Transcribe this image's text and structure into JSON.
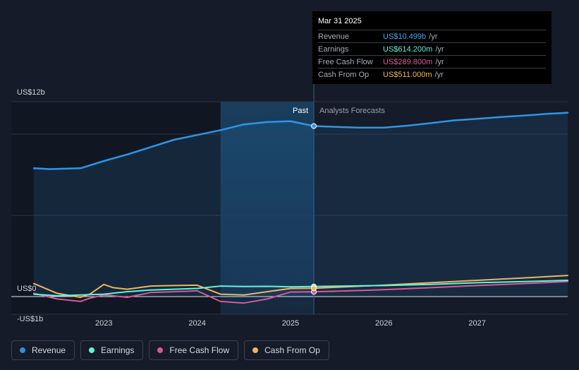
{
  "tooltip": {
    "date": "Mar 31 2025",
    "rows": [
      {
        "label": "Revenue",
        "value": "US$10.499b",
        "unit": "/yr",
        "color": "#3fa9f5"
      },
      {
        "label": "Earnings",
        "value": "US$614.200m",
        "unit": "/yr",
        "color": "#5ff5d8"
      },
      {
        "label": "Free Cash Flow",
        "value": "US$289.800m",
        "unit": "/yr",
        "color": "#e05a9a"
      },
      {
        "label": "Cash From Op",
        "value": "US$511.000m",
        "unit": "/yr",
        "color": "#f5b65a"
      }
    ]
  },
  "labels": {
    "past": "Past",
    "forecast": "Analysts Forecasts"
  },
  "legend": [
    {
      "label": "Revenue",
      "color": "#2d8fe0"
    },
    {
      "label": "Earnings",
      "color": "#5ff5d8"
    },
    {
      "label": "Free Cash Flow",
      "color": "#d9589a"
    },
    {
      "label": "Cash From Op",
      "color": "#f0b45f"
    }
  ],
  "chart_data": {
    "type": "line",
    "y_tick_labels": [
      "US$12b",
      "US$0",
      "-US$1b"
    ],
    "x_tick_labels": [
      "2023",
      "2024",
      "2025",
      "2026",
      "2027"
    ],
    "ylim": [
      -1,
      12
    ],
    "xlim": [
      2022.25,
      2027.97
    ],
    "past_end": 2025.25,
    "highlight_start": 2024.25,
    "series": [
      {
        "name": "Revenue",
        "color": "#2f95e6",
        "x": [
          2022.25,
          2022.42,
          2022.75,
          2023.0,
          2023.25,
          2023.5,
          2023.75,
          2024.0,
          2024.25,
          2024.5,
          2024.75,
          2025.0,
          2025.25,
          2025.5,
          2025.75,
          2026.0,
          2026.25,
          2026.5,
          2026.75,
          2027.0,
          2027.25,
          2027.5,
          2027.75,
          2027.97
        ],
        "y": [
          7.9,
          7.85,
          7.9,
          8.35,
          8.75,
          9.2,
          9.65,
          9.95,
          10.25,
          10.6,
          10.75,
          10.8,
          10.5,
          10.45,
          10.4,
          10.4,
          10.52,
          10.68,
          10.85,
          10.95,
          11.05,
          11.15,
          11.25,
          11.32
        ]
      },
      {
        "name": "Earnings",
        "color": "#5ff5d8",
        "x": [
          2022.25,
          2022.5,
          2022.75,
          2023.0,
          2023.25,
          2023.5,
          2023.75,
          2024.0,
          2024.25,
          2024.5,
          2024.75,
          2025.0,
          2025.25,
          2025.5,
          2025.75,
          2026.0,
          2026.5,
          2027.0,
          2027.5,
          2027.97
        ],
        "y": [
          0.15,
          0.05,
          0.1,
          0.15,
          0.3,
          0.4,
          0.45,
          0.5,
          0.65,
          0.62,
          0.63,
          0.6,
          0.62,
          0.64,
          0.66,
          0.68,
          0.75,
          0.85,
          0.92,
          1.0
        ]
      },
      {
        "name": "Free Cash Flow",
        "color": "#d9589a",
        "x": [
          2022.25,
          2022.5,
          2022.75,
          2022.85,
          2023.0,
          2023.1,
          2023.25,
          2023.5,
          2023.75,
          2024.0,
          2024.25,
          2024.5,
          2024.75,
          2025.0,
          2025.25,
          2025.5,
          2026.0,
          2026.5,
          2027.0,
          2027.5,
          2027.97
        ],
        "y": [
          0.2,
          -0.15,
          -0.3,
          -0.1,
          0.1,
          0.05,
          -0.05,
          0.25,
          0.3,
          0.35,
          -0.3,
          -0.4,
          -0.15,
          0.28,
          0.29,
          0.33,
          0.42,
          0.55,
          0.68,
          0.8,
          0.92
        ]
      },
      {
        "name": "Cash From Op",
        "color": "#f0b45f",
        "x": [
          2022.25,
          2022.5,
          2022.75,
          2022.85,
          2023.0,
          2023.1,
          2023.25,
          2023.5,
          2023.75,
          2024.0,
          2024.25,
          2024.5,
          2024.75,
          2025.0,
          2025.25,
          2025.5,
          2026.0,
          2026.5,
          2027.0,
          2027.5,
          2027.97
        ],
        "y": [
          0.8,
          0.2,
          -0.05,
          0.15,
          0.75,
          0.55,
          0.45,
          0.65,
          0.68,
          0.7,
          0.15,
          0.1,
          0.3,
          0.5,
          0.51,
          0.58,
          0.7,
          0.85,
          1.0,
          1.15,
          1.3
        ]
      }
    ]
  }
}
